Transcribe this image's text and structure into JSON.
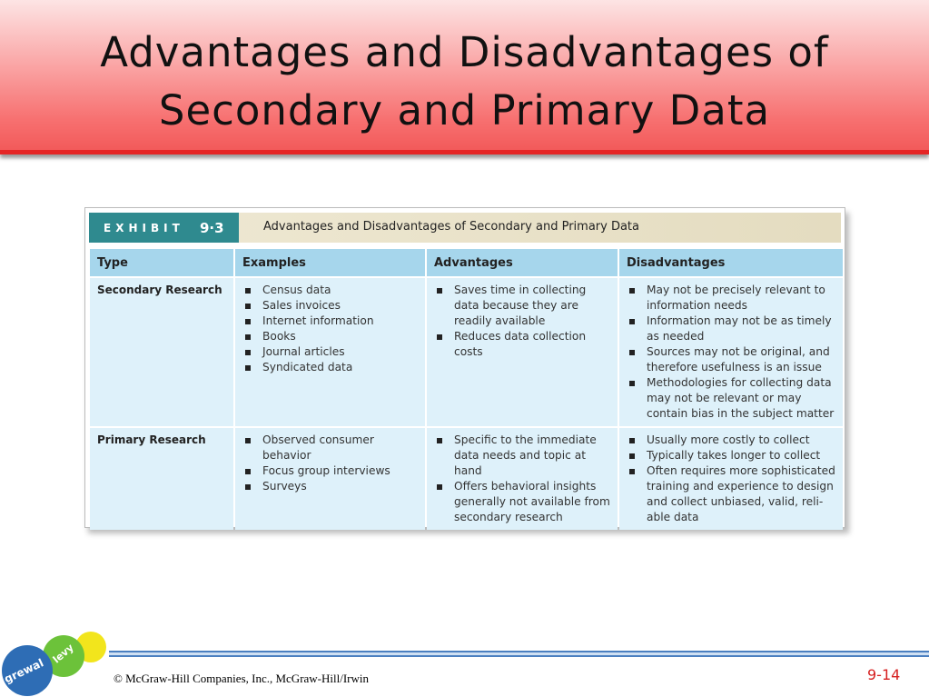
{
  "header": {
    "title_lines": [
      "Advantages and Disadvantages of",
      "Secondary and Primary Data"
    ]
  },
  "exhibit": {
    "label": "EXHIBIT",
    "number": "9·3",
    "title": "Advantages and Disadvantages of Secondary and Primary Data"
  },
  "table": {
    "columns": [
      "Type",
      "Examples",
      "Advantages",
      "Disadvantages"
    ],
    "rows": [
      {
        "type": "Secondary Research",
        "examples": [
          "Census data",
          "Sales invoices",
          "Internet information",
          "Books",
          "Journal articles",
          "Syndicated data"
        ],
        "advantages": [
          "Saves time in collecting data because they are readily available",
          "Reduces data collection costs"
        ],
        "disadvantages": [
          "May not be precisely relevant to information needs",
          "Information may not be as timely as needed",
          "Sources may not be original, and therefore usefulness is an issue",
          "Methodologies for collecting data may not be relevant or may contain bias in the subject matter"
        ]
      },
      {
        "type": "Primary Research",
        "examples": [
          "Observed consumer behavior",
          "Focus group interviews",
          "Surveys"
        ],
        "advantages": [
          "Specific to the immediate data needs and topic at hand",
          "Offers behavioral insights generally not available from secondary research"
        ],
        "disadvantages": [
          "Usually more costly to collect",
          "Typically takes longer to collect",
          "Often requires more sophisticated training and experience to design and collect unbiased, valid, reli-able data"
        ]
      }
    ]
  },
  "footer": {
    "copyright": "© McGraw-Hill Companies, Inc., McGraw-Hill/Irwin",
    "page": "9-14",
    "logo": [
      "grewal",
      "levy"
    ]
  }
}
